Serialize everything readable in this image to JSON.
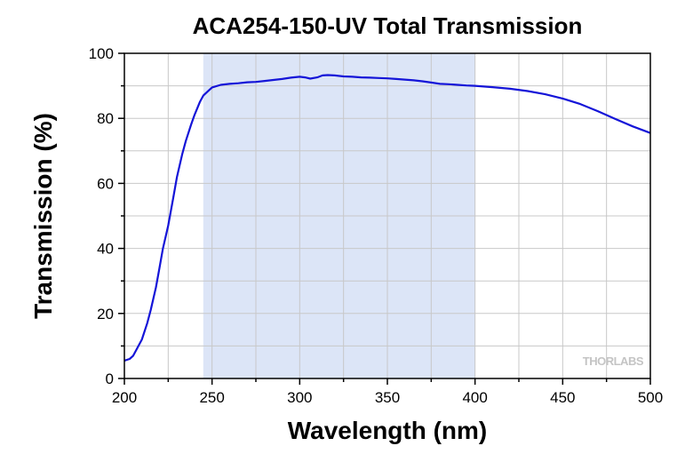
{
  "chart_data": {
    "type": "line",
    "title": "ACA254-150-UV Total Transmission",
    "xlabel": "Wavelength (nm)",
    "ylabel": "Transmission (%)",
    "xlim": [
      200,
      500
    ],
    "ylim": [
      0,
      100
    ],
    "xticks": [
      200,
      250,
      300,
      350,
      400,
      450,
      500
    ],
    "yticks": [
      0,
      20,
      40,
      60,
      80,
      100
    ],
    "xtick_labels": [
      "200",
      "250",
      "300",
      "350",
      "400",
      "450",
      "500"
    ],
    "ytick_labels": [
      "0",
      "20",
      "40",
      "60",
      "80",
      "100"
    ],
    "grid": true,
    "highlight_band": {
      "x_start": 245,
      "x_end": 400,
      "color": "#dce5f7"
    },
    "series": [
      {
        "color": "#1414d8",
        "x": [
          200,
          203,
          205,
          207,
          210,
          213,
          215,
          218,
          220,
          222,
          225,
          228,
          230,
          233,
          235,
          238,
          240,
          243,
          245,
          248,
          250,
          255,
          260,
          265,
          270,
          275,
          280,
          285,
          290,
          295,
          300,
          303,
          306,
          310,
          313,
          316,
          320,
          325,
          330,
          335,
          340,
          345,
          350,
          355,
          360,
          365,
          370,
          375,
          380,
          385,
          390,
          395,
          400,
          410,
          420,
          430,
          440,
          450,
          460,
          470,
          480,
          490,
          500
        ],
        "values": [
          5.5,
          6.0,
          7.0,
          9.0,
          12.0,
          17.0,
          21.0,
          28.0,
          34.0,
          40.0,
          47.0,
          56.0,
          62.0,
          69.0,
          73.0,
          78.0,
          81.0,
          85.0,
          87.0,
          88.5,
          89.5,
          90.3,
          90.6,
          90.8,
          91.1,
          91.2,
          91.5,
          91.8,
          92.1,
          92.5,
          92.8,
          92.6,
          92.2,
          92.6,
          93.2,
          93.3,
          93.2,
          92.9,
          92.8,
          92.6,
          92.5,
          92.4,
          92.3,
          92.1,
          91.9,
          91.7,
          91.4,
          91.0,
          90.6,
          90.5,
          90.3,
          90.1,
          90.0,
          89.6,
          89.1,
          88.4,
          87.4,
          86.1,
          84.4,
          82.2,
          79.8,
          77.5,
          75.5
        ]
      }
    ]
  },
  "watermark": "THORLABS",
  "colors": {
    "axis": "#000000",
    "grid": "#c8c8c8",
    "line": "#1414d8",
    "band": "#dce5f7"
  }
}
